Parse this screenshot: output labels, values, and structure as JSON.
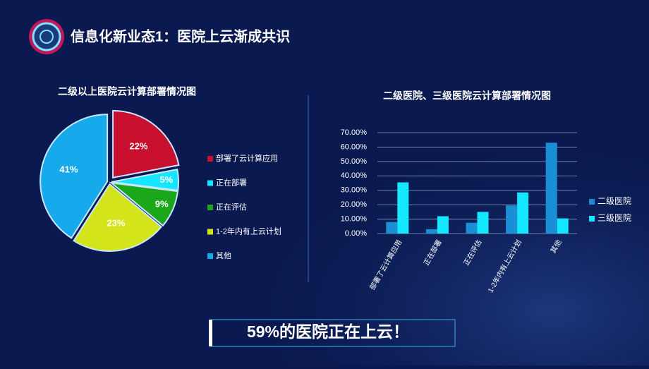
{
  "header": {
    "title": "信息化新业态1：医院上云渐成共识"
  },
  "chart_data": [
    {
      "type": "pie",
      "title": "二级以上医院云计算部署情况图",
      "categories": [
        "部署了云计算应用",
        "正在部署",
        "正在评估",
        "1-2年内有上云计划",
        "其他"
      ],
      "values": [
        22,
        5,
        9,
        23,
        41
      ],
      "value_labels": [
        "22%",
        "5%",
        "9%",
        "23%",
        "41%"
      ],
      "colors": [
        "#c8102e",
        "#14e6ff",
        "#1aa81a",
        "#d4e41a",
        "#16a9ec"
      ]
    },
    {
      "type": "bar",
      "title": "二级医院、三级医院云计算部署情况图",
      "categories": [
        "部署了云计算应用",
        "正在部署",
        "正在评估",
        "1-2年内有上云计划",
        "其他"
      ],
      "series": [
        {
          "name": "二级医院",
          "color": "#1b8fd6",
          "values": [
            8,
            3,
            7.5,
            19.5,
            63
          ]
        },
        {
          "name": "三级医院",
          "color": "#14e8ff",
          "values": [
            35.5,
            12,
            15,
            28.5,
            10.5
          ]
        }
      ],
      "ylim": [
        0,
        70
      ],
      "yticks": [
        {
          "value": 0,
          "label": "0.00%"
        },
        {
          "value": 10,
          "label": "10.00%"
        },
        {
          "value": 20,
          "label": "20.00%"
        },
        {
          "value": 30,
          "label": "30.00%"
        },
        {
          "value": 40,
          "label": "40.00%"
        },
        {
          "value": 50,
          "label": "50.00%"
        },
        {
          "value": 60,
          "label": "60.00%"
        },
        {
          "value": 70,
          "label": "70.00%"
        }
      ],
      "grid": true,
      "legend": "right"
    }
  ],
  "callout": {
    "text": "59%的医院正在上云！"
  }
}
